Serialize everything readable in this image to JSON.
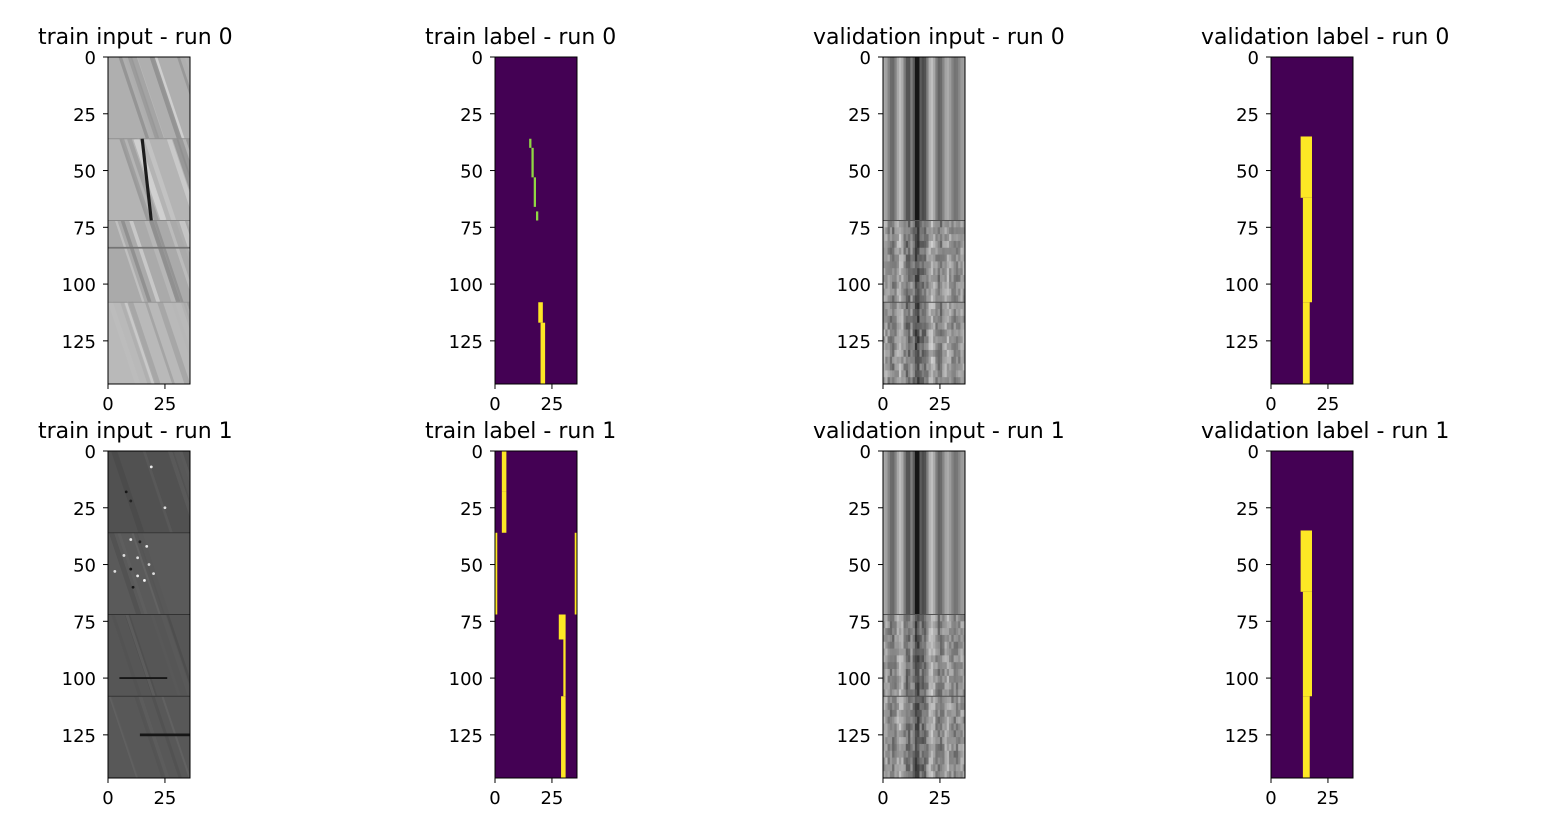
{
  "figure": {
    "background": "#ffffff",
    "colormaps": {
      "viridis_low": "#440154",
      "viridis_mid": "#90d743",
      "viridis_high": "#fde725",
      "gray_low": "#111111",
      "gray_high": "#ececec"
    }
  },
  "chart_data": [
    {
      "type": "heatmap",
      "kind": "image-gray",
      "title": "train input - run 0",
      "xticks": [
        "0",
        "25"
      ],
      "yticks": [
        "0",
        "25",
        "50",
        "75",
        "100",
        "125"
      ],
      "xlim": [
        0,
        36
      ],
      "ylim": [
        0,
        144
      ],
      "blocks": [
        {
          "y0": 0,
          "y1": 36,
          "shade": 0.7
        },
        {
          "y0": 36,
          "y1": 72,
          "shade": 0.72
        },
        {
          "y0": 72,
          "y1": 108,
          "shade": 0.68
        },
        {
          "y0": 108,
          "y1": 144,
          "shade": 0.74
        }
      ],
      "streaks": [
        {
          "x0": 15,
          "y0": 36,
          "x1": 19,
          "y1": 72,
          "shade": 0.08,
          "w": 1.4
        },
        {
          "x0": 0,
          "y0": 84,
          "x1": 36,
          "y1": 84,
          "shade": 0.45,
          "w": 0.8
        }
      ]
    },
    {
      "type": "heatmap",
      "kind": "label",
      "title": "train label - run 0",
      "xticks": [
        "0",
        "25"
      ],
      "yticks": [
        "0",
        "25",
        "50",
        "75",
        "100",
        "125"
      ],
      "xlim": [
        0,
        36
      ],
      "ylim": [
        0,
        144
      ],
      "segments": [
        {
          "y0": 36,
          "y1": 40,
          "x0": 15,
          "x1": 16,
          "level": "mid"
        },
        {
          "y0": 40,
          "y1": 53,
          "x0": 16,
          "x1": 17,
          "level": "mid"
        },
        {
          "y0": 53,
          "y1": 66,
          "x0": 17,
          "x1": 18,
          "level": "mid"
        },
        {
          "y0": 68,
          "y1": 72,
          "x0": 18,
          "x1": 19,
          "level": "mid"
        },
        {
          "y0": 108,
          "y1": 117,
          "x0": 19,
          "x1": 21,
          "level": "high"
        },
        {
          "y0": 117,
          "y1": 144,
          "x0": 20,
          "x1": 22,
          "level": "high"
        }
      ]
    },
    {
      "type": "heatmap",
      "kind": "image-stripes",
      "title": "validation input - run 0",
      "xticks": [
        "0",
        "25"
      ],
      "yticks": [
        "0",
        "25",
        "50",
        "75",
        "100",
        "125"
      ],
      "xlim": [
        0,
        36
      ],
      "ylim": [
        0,
        144
      ],
      "dark_column": 15,
      "texture_rows": [
        72,
        108
      ]
    },
    {
      "type": "heatmap",
      "kind": "label",
      "title": "validation label - run 0",
      "xticks": [
        "0",
        "25"
      ],
      "yticks": [
        "0",
        "25",
        "50",
        "75",
        "100",
        "125"
      ],
      "xlim": [
        0,
        36
      ],
      "ylim": [
        0,
        144
      ],
      "segments": [
        {
          "y0": 35,
          "y1": 62,
          "x0": 13,
          "x1": 18,
          "level": "high"
        },
        {
          "y0": 62,
          "y1": 108,
          "x0": 14,
          "x1": 18,
          "level": "high"
        },
        {
          "y0": 108,
          "y1": 144,
          "x0": 14,
          "x1": 17,
          "level": "high"
        }
      ]
    },
    {
      "type": "heatmap",
      "kind": "image-dark",
      "title": "train input - run 1",
      "xticks": [
        "0",
        "25"
      ],
      "yticks": [
        "0",
        "25",
        "50",
        "75",
        "100",
        "125"
      ],
      "xlim": [
        0,
        36
      ],
      "ylim": [
        0,
        144
      ],
      "blocks": [
        {
          "y0": 0,
          "y1": 36,
          "shade": 0.3
        },
        {
          "y0": 36,
          "y1": 72,
          "shade": 0.34
        },
        {
          "y0": 72,
          "y1": 108,
          "shade": 0.32
        },
        {
          "y0": 108,
          "y1": 144,
          "shade": 0.33
        }
      ],
      "dots": [
        {
          "x": 19,
          "y": 7,
          "shade": 0.95
        },
        {
          "x": 8,
          "y": 18,
          "shade": 0.05
        },
        {
          "x": 10,
          "y": 22,
          "shade": 0.1
        },
        {
          "x": 25,
          "y": 25,
          "shade": 0.9
        },
        {
          "x": 10,
          "y": 39,
          "shade": 0.95
        },
        {
          "x": 14,
          "y": 40,
          "shade": 0.1
        },
        {
          "x": 17,
          "y": 42,
          "shade": 0.95
        },
        {
          "x": 7,
          "y": 46,
          "shade": 0.9
        },
        {
          "x": 13,
          "y": 47,
          "shade": 0.9
        },
        {
          "x": 18,
          "y": 50,
          "shade": 0.85
        },
        {
          "x": 10,
          "y": 52,
          "shade": 0.05
        },
        {
          "x": 3,
          "y": 53,
          "shade": 0.9
        },
        {
          "x": 13,
          "y": 55,
          "shade": 0.95
        },
        {
          "x": 20,
          "y": 54,
          "shade": 0.9
        },
        {
          "x": 16,
          "y": 57,
          "shade": 1.0
        },
        {
          "x": 11,
          "y": 60,
          "shade": 0.05
        }
      ],
      "streaks": [
        {
          "x0": 5,
          "y0": 100,
          "x1": 26,
          "y1": 100,
          "shade": 0.05,
          "w": 0.8
        },
        {
          "x0": 14,
          "y0": 125,
          "x1": 36,
          "y1": 125,
          "shade": 0.05,
          "w": 1.2
        }
      ]
    },
    {
      "type": "heatmap",
      "kind": "label",
      "title": "train label - run 1",
      "xticks": [
        "0",
        "25"
      ],
      "yticks": [
        "0",
        "25",
        "50",
        "75",
        "100",
        "125"
      ],
      "xlim": [
        0,
        36
      ],
      "ylim": [
        0,
        144
      ],
      "segments": [
        {
          "y0": 0,
          "y1": 18,
          "x0": 3,
          "x1": 5,
          "level": "high"
        },
        {
          "y0": 18,
          "y1": 36,
          "x0": 3,
          "x1": 5,
          "level": "high"
        },
        {
          "y0": 36,
          "y1": 72,
          "x0": 0,
          "x1": 1,
          "level": "high"
        },
        {
          "y0": 36,
          "y1": 72,
          "x0": 35,
          "x1": 36,
          "level": "high"
        },
        {
          "y0": 72,
          "y1": 83,
          "x0": 28,
          "x1": 31,
          "level": "high"
        },
        {
          "y0": 83,
          "y1": 108,
          "x0": 30,
          "x1": 31,
          "level": "high"
        },
        {
          "y0": 108,
          "y1": 144,
          "x0": 29,
          "x1": 31,
          "level": "high"
        }
      ]
    },
    {
      "type": "heatmap",
      "kind": "image-stripes",
      "title": "validation input - run 1",
      "xticks": [
        "0",
        "25"
      ],
      "yticks": [
        "0",
        "25",
        "50",
        "75",
        "100",
        "125"
      ],
      "xlim": [
        0,
        36
      ],
      "ylim": [
        0,
        144
      ],
      "dark_column": 15,
      "texture_rows": [
        72,
        108
      ]
    },
    {
      "type": "heatmap",
      "kind": "label",
      "title": "validation label - run 1",
      "xticks": [
        "0",
        "25"
      ],
      "yticks": [
        "0",
        "25",
        "50",
        "75",
        "100",
        "125"
      ],
      "xlim": [
        0,
        36
      ],
      "ylim": [
        0,
        144
      ],
      "segments": [
        {
          "y0": 35,
          "y1": 62,
          "x0": 13,
          "x1": 18,
          "level": "high"
        },
        {
          "y0": 62,
          "y1": 108,
          "x0": 14,
          "x1": 18,
          "level": "high"
        },
        {
          "y0": 108,
          "y1": 144,
          "x0": 14,
          "x1": 17,
          "level": "high"
        }
      ]
    }
  ]
}
